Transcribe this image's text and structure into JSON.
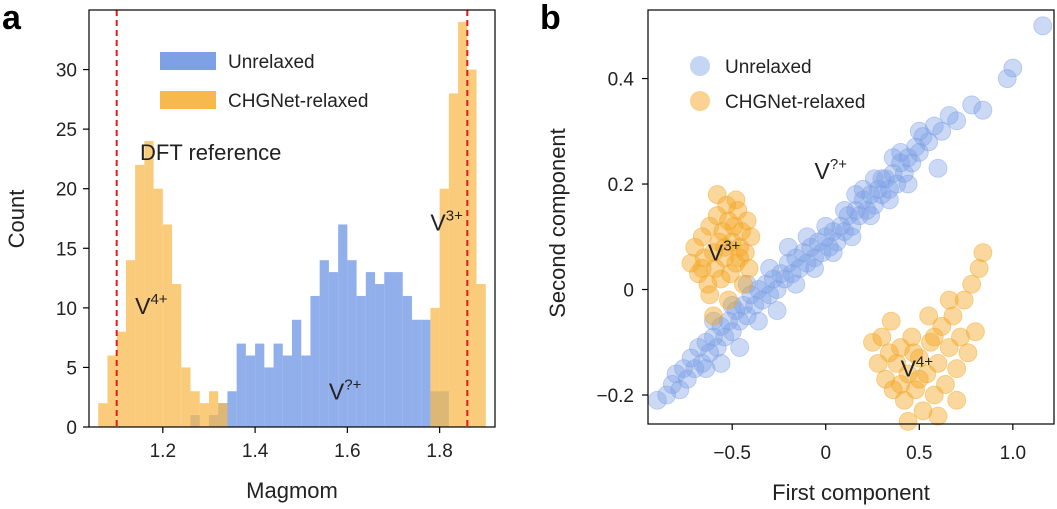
{
  "chart_data": [
    {
      "panel": "a",
      "type": "bar",
      "title": "",
      "xlabel": "Magmom",
      "ylabel": "Count",
      "xlim": [
        1.04,
        1.92
      ],
      "ylim": [
        0,
        35
      ],
      "bin_width": 0.02,
      "xticks": [
        1.2,
        1.4,
        1.6,
        1.8
      ],
      "xtick_labels": [
        "1.2",
        "1.4",
        "1.6",
        "1.8"
      ],
      "yticks": [
        0,
        5,
        10,
        15,
        20,
        25,
        30
      ],
      "ytick_labels": [
        "0",
        "5",
        "10",
        "15",
        "20",
        "25",
        "30"
      ],
      "series": [
        {
          "name": "Unrelaxed",
          "color": "#7ea1e6",
          "bins": [
            [
              1.26,
              1
            ],
            [
              1.3,
              1
            ],
            [
              1.32,
              2
            ],
            [
              1.34,
              3
            ],
            [
              1.36,
              7
            ],
            [
              1.38,
              6
            ],
            [
              1.4,
              7
            ],
            [
              1.42,
              5
            ],
            [
              1.44,
              7
            ],
            [
              1.46,
              6
            ],
            [
              1.48,
              9
            ],
            [
              1.5,
              6
            ],
            [
              1.52,
              11
            ],
            [
              1.54,
              14
            ],
            [
              1.56,
              13
            ],
            [
              1.58,
              17
            ],
            [
              1.6,
              14
            ],
            [
              1.62,
              11
            ],
            [
              1.64,
              13
            ],
            [
              1.66,
              12
            ],
            [
              1.68,
              13
            ],
            [
              1.7,
              13
            ],
            [
              1.72,
              11
            ],
            [
              1.74,
              9
            ],
            [
              1.76,
              9
            ],
            [
              1.78,
              3
            ],
            [
              1.8,
              3
            ]
          ]
        },
        {
          "name": "CHGNet-relaxed",
          "color": "#f7b94e",
          "bins": [
            [
              1.06,
              2
            ],
            [
              1.08,
              6
            ],
            [
              1.1,
              8
            ],
            [
              1.12,
              14
            ],
            [
              1.14,
              22
            ],
            [
              1.16,
              24
            ],
            [
              1.18,
              20
            ],
            [
              1.2,
              17
            ],
            [
              1.22,
              12
            ],
            [
              1.24,
              5
            ],
            [
              1.26,
              3
            ],
            [
              1.28,
              2
            ],
            [
              1.3,
              3
            ],
            [
              1.32,
              2
            ],
            [
              1.78,
              10
            ],
            [
              1.8,
              20
            ],
            [
              1.82,
              28
            ],
            [
              1.84,
              34
            ],
            [
              1.86,
              30
            ],
            [
              1.88,
              12
            ]
          ]
        }
      ],
      "reference_lines": {
        "label": "DFT reference",
        "x": [
          1.1,
          1.86
        ],
        "color": "#e31a1c"
      },
      "annotations": [
        {
          "base": "V",
          "sup": "4+",
          "x": 1.14,
          "y": 9.5
        },
        {
          "base": "V",
          "sup": "?+",
          "x": 1.56,
          "y": 2.3
        },
        {
          "base": "V",
          "sup": "3+",
          "x": 1.78,
          "y": 16.5
        }
      ],
      "legend": {
        "position": "top-center",
        "entries": [
          "Unrelaxed",
          "CHGNet-relaxed"
        ]
      }
    },
    {
      "panel": "b",
      "type": "scatter",
      "title": "",
      "xlabel": "First component",
      "ylabel": "Second component",
      "xlim": [
        -0.95,
        1.22
      ],
      "ylim": [
        -0.255,
        0.53
      ],
      "xticks": [
        -0.5,
        0,
        0.5,
        1.0
      ],
      "xtick_labels": [
        "−0.5",
        "0",
        "0.5",
        "1.0"
      ],
      "yticks": [
        -0.2,
        0,
        0.2,
        0.4
      ],
      "ytick_labels": [
        "−0.2",
        "0",
        "0.2",
        "0.4"
      ],
      "series": [
        {
          "name": "Unrelaxed",
          "color": "#7ea1e6",
          "points": [
            [
              -0.9,
              -0.21
            ],
            [
              -0.85,
              -0.2
            ],
            [
              -0.82,
              -0.18
            ],
            [
              -0.8,
              -0.16
            ],
            [
              -0.78,
              -0.19
            ],
            [
              -0.76,
              -0.15
            ],
            [
              -0.74,
              -0.17
            ],
            [
              -0.72,
              -0.13
            ],
            [
              -0.7,
              -0.15
            ],
            [
              -0.68,
              -0.11
            ],
            [
              -0.66,
              -0.14
            ],
            [
              -0.64,
              -0.1
            ],
            [
              -0.62,
              -0.12
            ],
            [
              -0.6,
              -0.09
            ],
            [
              -0.58,
              -0.11
            ],
            [
              -0.56,
              -0.07
            ],
            [
              -0.54,
              -0.09
            ],
            [
              -0.52,
              -0.06
            ],
            [
              -0.5,
              -0.08
            ],
            [
              -0.48,
              -0.04
            ],
            [
              -0.46,
              -0.06
            ],
            [
              -0.44,
              -0.03
            ],
            [
              -0.42,
              -0.05
            ],
            [
              -0.4,
              -0.01
            ],
            [
              -0.38,
              -0.03
            ],
            [
              -0.36,
              0.0
            ],
            [
              -0.34,
              -0.02
            ],
            [
              -0.32,
              0.01
            ],
            [
              -0.3,
              -0.01
            ],
            [
              -0.28,
              0.02
            ],
            [
              -0.26,
              0.0
            ],
            [
              -0.24,
              0.03
            ],
            [
              -0.22,
              0.02
            ],
            [
              -0.2,
              0.05
            ],
            [
              -0.18,
              0.03
            ],
            [
              -0.16,
              0.06
            ],
            [
              -0.14,
              0.04
            ],
            [
              -0.12,
              0.07
            ],
            [
              -0.1,
              0.05
            ],
            [
              -0.08,
              0.08
            ],
            [
              -0.06,
              0.06
            ],
            [
              -0.04,
              0.09
            ],
            [
              -0.02,
              0.07
            ],
            [
              0.0,
              0.1
            ],
            [
              0.02,
              0.08
            ],
            [
              0.04,
              0.11
            ],
            [
              0.06,
              0.09
            ],
            [
              0.08,
              0.12
            ],
            [
              0.1,
              0.11
            ],
            [
              0.12,
              0.14
            ],
            [
              0.14,
              0.12
            ],
            [
              0.16,
              0.15
            ],
            [
              0.18,
              0.14
            ],
            [
              0.2,
              0.17
            ],
            [
              0.22,
              0.15
            ],
            [
              0.24,
              0.18
            ],
            [
              0.26,
              0.16
            ],
            [
              0.28,
              0.19
            ],
            [
              0.3,
              0.18
            ],
            [
              0.32,
              0.21
            ],
            [
              0.34,
              0.19
            ],
            [
              0.36,
              0.22
            ],
            [
              0.38,
              0.2
            ],
            [
              0.4,
              0.24
            ],
            [
              0.42,
              0.22
            ],
            [
              0.44,
              0.25
            ],
            [
              0.46,
              0.24
            ],
            [
              0.48,
              0.27
            ],
            [
              0.5,
              0.26
            ],
            [
              0.52,
              0.29
            ],
            [
              0.55,
              0.28
            ],
            [
              0.58,
              0.31
            ],
            [
              0.62,
              0.3
            ],
            [
              0.66,
              0.33
            ],
            [
              0.7,
              0.32
            ],
            [
              0.78,
              0.35
            ],
            [
              0.84,
              0.34
            ],
            [
              0.97,
              0.4
            ],
            [
              1.0,
              0.42
            ],
            [
              1.16,
              0.5
            ],
            [
              -0.6,
              -0.06
            ],
            [
              -0.5,
              -0.03
            ],
            [
              -0.42,
              0.01
            ],
            [
              -0.3,
              0.04
            ],
            [
              -0.2,
              0.08
            ],
            [
              -0.1,
              0.1
            ],
            [
              0.0,
              0.12
            ],
            [
              0.1,
              0.15
            ],
            [
              0.2,
              0.19
            ],
            [
              0.3,
              0.21
            ],
            [
              0.4,
              0.26
            ],
            [
              0.5,
              0.3
            ],
            [
              -0.56,
              -0.14
            ],
            [
              -0.46,
              -0.11
            ],
            [
              -0.36,
              -0.06
            ],
            [
              -0.26,
              -0.04
            ],
            [
              -0.16,
              0.01
            ],
            [
              -0.06,
              0.04
            ],
            [
              0.04,
              0.07
            ],
            [
              0.14,
              0.1
            ],
            [
              0.24,
              0.14
            ],
            [
              0.34,
              0.17
            ],
            [
              0.44,
              0.2
            ],
            [
              -0.64,
              -0.15
            ],
            [
              0.6,
              0.23
            ],
            [
              0.36,
              0.25
            ],
            [
              0.26,
              0.21
            ],
            [
              0.16,
              0.18
            ]
          ]
        },
        {
          "name": "CHGNet-relaxed",
          "color": "#f5a623",
          "points": [
            [
              -0.72,
              0.05
            ],
            [
              -0.7,
              0.08
            ],
            [
              -0.68,
              0.03
            ],
            [
              -0.66,
              0.1
            ],
            [
              -0.65,
              0.06
            ],
            [
              -0.63,
              0.01
            ],
            [
              -0.62,
              0.12
            ],
            [
              -0.6,
              0.07
            ],
            [
              -0.59,
              0.04
            ],
            [
              -0.58,
              0.14
            ],
            [
              -0.57,
              0.09
            ],
            [
              -0.56,
              0.02
            ],
            [
              -0.55,
              0.11
            ],
            [
              -0.54,
              0.06
            ],
            [
              -0.53,
              0.16
            ],
            [
              -0.52,
              0.13
            ],
            [
              -0.51,
              0.03
            ],
            [
              -0.5,
              0.09
            ],
            [
              -0.49,
              0.12
            ],
            [
              -0.48,
              0.05
            ],
            [
              -0.47,
              0.15
            ],
            [
              -0.46,
              0.08
            ],
            [
              -0.45,
              0.11
            ],
            [
              -0.44,
              0.01
            ],
            [
              -0.43,
              0.07
            ],
            [
              -0.42,
              0.13
            ],
            [
              -0.41,
              0.04
            ],
            [
              -0.4,
              0.1
            ],
            [
              -0.62,
              -0.01
            ],
            [
              -0.52,
              -0.02
            ],
            [
              -0.58,
              0.18
            ],
            [
              -0.48,
              0.17
            ],
            [
              -0.66,
              0.04
            ],
            [
              -0.54,
              0.08
            ],
            [
              -0.46,
              0.06
            ],
            [
              -0.6,
              -0.05
            ],
            [
              0.25,
              -0.1
            ],
            [
              0.28,
              -0.14
            ],
            [
              0.3,
              -0.09
            ],
            [
              0.32,
              -0.17
            ],
            [
              0.34,
              -0.12
            ],
            [
              0.36,
              -0.19
            ],
            [
              0.38,
              -0.14
            ],
            [
              0.4,
              -0.11
            ],
            [
              0.42,
              -0.21
            ],
            [
              0.44,
              -0.16
            ],
            [
              0.46,
              -0.09
            ],
            [
              0.48,
              -0.19
            ],
            [
              0.5,
              -0.13
            ],
            [
              0.52,
              -0.23
            ],
            [
              0.54,
              -0.16
            ],
            [
              0.56,
              -0.1
            ],
            [
              0.58,
              -0.2
            ],
            [
              0.6,
              -0.14
            ],
            [
              0.62,
              -0.07
            ],
            [
              0.64,
              -0.18
            ],
            [
              0.66,
              -0.11
            ],
            [
              0.68,
              -0.05
            ],
            [
              0.7,
              -0.15
            ],
            [
              0.72,
              -0.09
            ],
            [
              0.74,
              -0.02
            ],
            [
              0.76,
              -0.12
            ],
            [
              0.78,
              0.01
            ],
            [
              0.8,
              -0.08
            ],
            [
              0.82,
              0.04
            ],
            [
              0.84,
              0.07
            ],
            [
              0.44,
              -0.25
            ],
            [
              0.55,
              -0.05
            ],
            [
              0.66,
              -0.02
            ],
            [
              0.6,
              -0.24
            ],
            [
              0.5,
              -0.17
            ],
            [
              0.4,
              -0.18
            ],
            [
              0.7,
              -0.21
            ],
            [
              0.35,
              -0.06
            ],
            [
              0.47,
              -0.12
            ],
            [
              0.58,
              -0.09
            ]
          ]
        }
      ],
      "annotations": [
        {
          "base": "V",
          "sup": "3+",
          "x": -0.63,
          "y": 0.055
        },
        {
          "base": "V",
          "sup": "?+",
          "x": -0.06,
          "y": 0.21
        },
        {
          "base": "V",
          "sup": "4+",
          "x": 0.4,
          "y": -0.165
        }
      ],
      "legend": {
        "position": "top-left",
        "entries": [
          "Unrelaxed",
          "CHGNet-relaxed"
        ]
      }
    }
  ],
  "panels": {
    "a": "a",
    "b": "b"
  }
}
